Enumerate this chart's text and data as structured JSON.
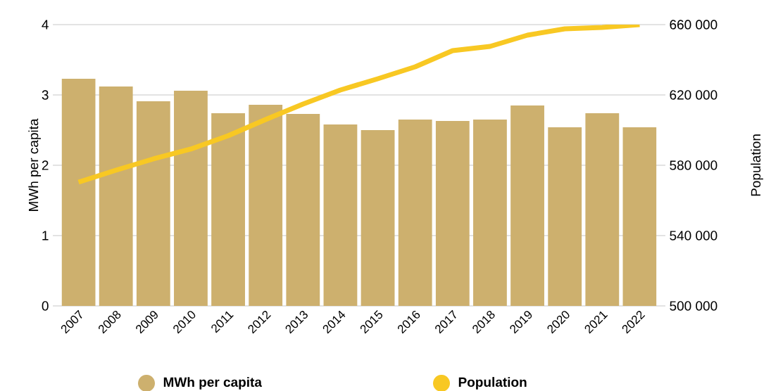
{
  "chart_data": {
    "type": "bar",
    "xlabel": null,
    "ylabel": "MWh per capita",
    "y2label": "Population",
    "categories": [
      "2007",
      "2008",
      "2009",
      "2010",
      "2011",
      "2012",
      "2013",
      "2014",
      "2015",
      "2016",
      "2017",
      "2018",
      "2019",
      "2020",
      "2021",
      "2022"
    ],
    "series": [
      {
        "name": "MWh per capita",
        "color": "#cdb06e",
        "values": [
          3.23,
          3.12,
          2.91,
          3.06,
          2.74,
          2.86,
          2.73,
          2.58,
          2.5,
          2.65,
          2.63,
          2.65,
          2.85,
          2.54,
          2.74,
          2.54
        ]
      },
      {
        "name": "Population",
        "type": "line",
        "axis": "y2",
        "color": "#f8c823",
        "values": [
          570400,
          577200,
          583600,
          589200,
          596800,
          606000,
          614800,
          622800,
          629200,
          636000,
          645200,
          647600,
          654000,
          657600,
          658400,
          660000
        ]
      }
    ],
    "ylim": [
      0,
      4
    ],
    "yticks": [
      0,
      1,
      2,
      3,
      4
    ],
    "y2lim": [
      500000,
      660000
    ],
    "y2ticks": [
      {
        "value": 500000,
        "label": "500 000"
      },
      {
        "value": 540000,
        "label": "540 000"
      },
      {
        "value": 580000,
        "label": "580 000"
      },
      {
        "value": 620000,
        "label": "620 000"
      },
      {
        "value": 660000,
        "label": "660 000"
      }
    ],
    "grid": "y",
    "legend": "bottom",
    "marker": "none",
    "line_style": "solid"
  }
}
